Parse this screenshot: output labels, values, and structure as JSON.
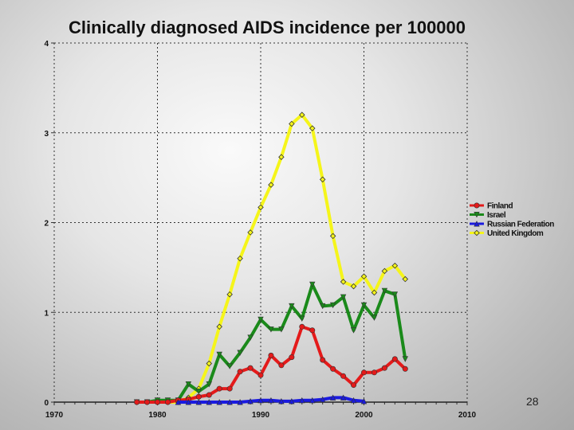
{
  "slide_number": "28",
  "chart_data": {
    "type": "line",
    "title": "Clinically diagnosed AIDS incidence per 100000",
    "xlabel": "",
    "ylabel": "",
    "xlim": [
      1970,
      2010
    ],
    "ylim": [
      0,
      4
    ],
    "xticks": [
      "1970",
      "1980",
      "1990",
      "2000",
      "2010"
    ],
    "yticks": [
      "0",
      "1",
      "2",
      "3",
      "4"
    ],
    "grid": true,
    "legend": "right",
    "x": [
      1978,
      1979,
      1980,
      1981,
      1982,
      1983,
      1984,
      1985,
      1986,
      1987,
      1988,
      1989,
      1990,
      1991,
      1992,
      1993,
      1994,
      1995,
      1996,
      1997,
      1998,
      1999,
      2000,
      2001,
      2002,
      2003,
      2004
    ],
    "series": [
      {
        "name": "Finland",
        "color": "#e41a1a",
        "marker": "circle",
        "values": [
          0,
          0,
          0,
          0,
          0.02,
          0.03,
          0.06,
          0.08,
          0.15,
          0.15,
          0.34,
          0.38,
          0.3,
          0.52,
          0.41,
          0.5,
          0.84,
          0.8,
          0.47,
          0.37,
          0.29,
          0.19,
          0.33,
          0.33,
          0.38,
          0.48,
          0.37
        ]
      },
      {
        "name": "Israel",
        "color": "#1a8a1a",
        "marker": "triangle-down",
        "values": [
          0,
          0,
          0.02,
          0.02,
          0.02,
          0.2,
          0.12,
          0.2,
          0.53,
          0.4,
          0.55,
          0.72,
          0.92,
          0.81,
          0.81,
          1.07,
          0.93,
          1.31,
          1.07,
          1.08,
          1.17,
          0.8,
          1.08,
          0.94,
          1.24,
          1.2,
          0.48
        ]
      },
      {
        "name": "Russian Federation",
        "color": "#1a1ae0",
        "marker": "triangle-up",
        "values": [
          null,
          null,
          null,
          null,
          0,
          0,
          0,
          0,
          0,
          0,
          0,
          0.01,
          0.02,
          0.02,
          0.01,
          0.01,
          0.02,
          0.02,
          0.03,
          0.05,
          0.05,
          0.02,
          0.01,
          null,
          null,
          null,
          null
        ]
      },
      {
        "name": "United Kingdom",
        "color": "#f5f51a",
        "marker": "diamond",
        "values": [
          0,
          0,
          0,
          0,
          0,
          0.05,
          0.15,
          0.43,
          0.84,
          1.2,
          1.6,
          1.89,
          2.17,
          2.42,
          2.73,
          3.1,
          3.2,
          3.05,
          2.48,
          1.85,
          1.34,
          1.29,
          1.4,
          1.22,
          1.46,
          1.52,
          1.37
        ]
      }
    ]
  }
}
